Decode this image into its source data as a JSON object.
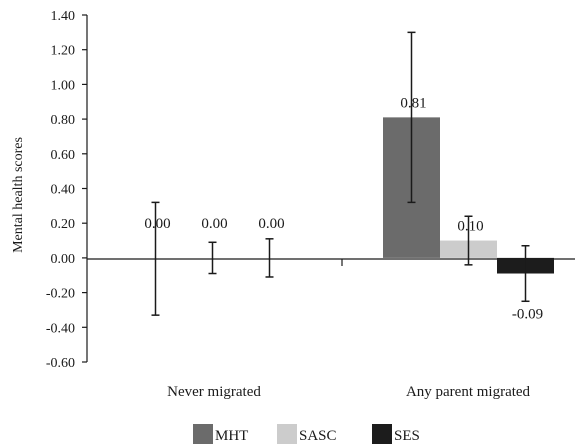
{
  "chart_data": {
    "type": "bar",
    "categories": [
      "Never migrated",
      "Any parent migrated"
    ],
    "series": [
      {
        "name": "MHT",
        "color": "#6b6b6b",
        "values": [
          0.0,
          0.81
        ],
        "error_low": [
          -0.33,
          0.32
        ],
        "error_high": [
          0.32,
          1.3
        ],
        "labels": [
          "0.00",
          "0.81"
        ]
      },
      {
        "name": "SASC",
        "color": "#cccccc",
        "values": [
          0.0,
          0.1
        ],
        "error_low": [
          -0.09,
          -0.04
        ],
        "error_high": [
          0.09,
          0.24
        ],
        "labels": [
          "0.00",
          "0.10"
        ]
      },
      {
        "name": "SES",
        "color": "#1c1c1c",
        "values": [
          0.0,
          -0.09
        ],
        "error_low": [
          -0.11,
          -0.25
        ],
        "error_high": [
          0.11,
          0.07
        ],
        "labels": [
          "0.00",
          "-0.09"
        ]
      }
    ],
    "title": "",
    "xlabel": "",
    "ylabel": "Mental health scores",
    "ylim": [
      -0.6,
      1.4
    ],
    "yticks": [
      "1.40",
      "1.20",
      "1.00",
      "0.80",
      "0.60",
      "0.40",
      "0.20",
      "0.00",
      "-0.20",
      "-0.40",
      "-0.60"
    ],
    "grid": false,
    "legend_position": "bottom-center"
  }
}
